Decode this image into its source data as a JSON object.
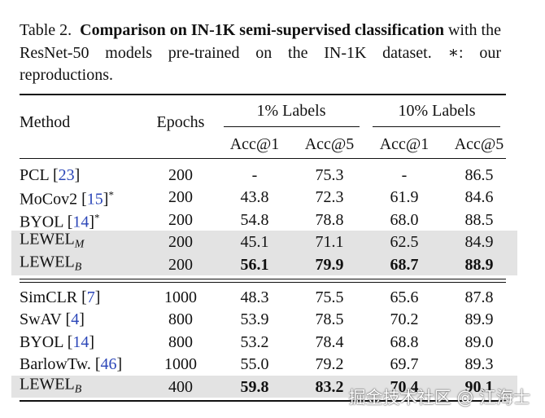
{
  "caption": {
    "label": "Table 2.",
    "title": "Comparison on IN-1K semi-supervised classification",
    "text": "with the ResNet-50 models pre-trained on the IN-1K dataset. ∗: our reproductions."
  },
  "table": {
    "header": {
      "method": "Method",
      "epochs": "Epochs",
      "groups": [
        "1% Labels",
        "10% Labels"
      ],
      "metrics": [
        "Acc@1",
        "Acc@5",
        "Acc@1",
        "Acc@5"
      ]
    },
    "sections": [
      {
        "rows": [
          {
            "method": [
              {
                "text": "PCL ["
              },
              {
                "text": "23",
                "link": true
              },
              {
                "text": "]"
              }
            ],
            "epochs": "200",
            "values": [
              "-",
              "75.3",
              "-",
              "86.5"
            ]
          },
          {
            "method": [
              {
                "text": "MoCov2 ["
              },
              {
                "text": "15",
                "link": true
              },
              {
                "text": "]"
              },
              {
                "text": "*",
                "sup": true
              }
            ],
            "epochs": "200",
            "values": [
              "43.8",
              "72.3",
              "61.9",
              "84.6"
            ]
          },
          {
            "method": [
              {
                "text": "BYOL ["
              },
              {
                "text": "14",
                "link": true
              },
              {
                "text": "]"
              },
              {
                "text": "*",
                "sup": true
              }
            ],
            "epochs": "200",
            "values": [
              "54.8",
              "78.8",
              "68.0",
              "88.5"
            ]
          },
          {
            "method": [
              {
                "text": "LEWEL"
              },
              {
                "text": "M",
                "sub": true
              }
            ],
            "epochs": "200",
            "values": [
              "45.1",
              "71.1",
              "62.5",
              "84.9"
            ],
            "highlight": true
          },
          {
            "method": [
              {
                "text": "LEWEL"
              },
              {
                "text": "B",
                "sub": true
              }
            ],
            "epochs": "200",
            "values": [
              "56.1",
              "79.9",
              "68.7",
              "88.9"
            ],
            "highlight": true,
            "bold": true
          }
        ]
      },
      {
        "rows": [
          {
            "method": [
              {
                "text": "SimCLR ["
              },
              {
                "text": "7",
                "link": true
              },
              {
                "text": "]"
              }
            ],
            "epochs": "1000",
            "values": [
              "48.3",
              "75.5",
              "65.6",
              "87.8"
            ]
          },
          {
            "method": [
              {
                "text": "SwAV ["
              },
              {
                "text": "4",
                "link": true
              },
              {
                "text": "]"
              }
            ],
            "epochs": "800",
            "values": [
              "53.9",
              "78.5",
              "70.2",
              "89.9"
            ]
          },
          {
            "method": [
              {
                "text": "BYOL ["
              },
              {
                "text": "14",
                "link": true
              },
              {
                "text": "]"
              }
            ],
            "epochs": "800",
            "values": [
              "53.2",
              "78.4",
              "68.8",
              "89.0"
            ]
          },
          {
            "method": [
              {
                "text": "BarlowTw. ["
              },
              {
                "text": "46",
                "link": true
              },
              {
                "text": "]"
              }
            ],
            "epochs": "1000",
            "values": [
              "55.0",
              "79.2",
              "69.7",
              "89.3"
            ]
          },
          {
            "method": [
              {
                "text": "LEWEL"
              },
              {
                "text": "B",
                "sub": true
              }
            ],
            "epochs": "400",
            "values": [
              "59.8",
              "83.2",
              "70.4",
              "90.1"
            ],
            "highlight": true,
            "bold": true
          }
        ]
      }
    ]
  },
  "watermark": "掘金技术社区 @ 江海士"
}
